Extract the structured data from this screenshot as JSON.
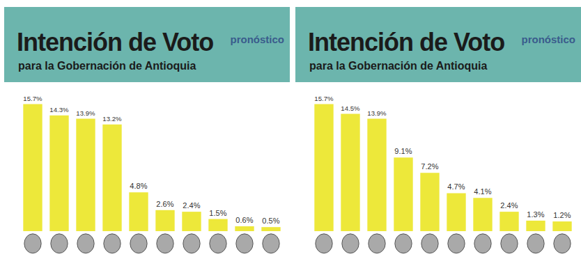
{
  "chart_data": [
    {
      "type": "bar",
      "title": "Intención de Voto",
      "subtitle": "para la Gobernación de Antioquia",
      "annotations": [
        "pronóstico"
      ],
      "categories": [
        null,
        null,
        null,
        null,
        null,
        null,
        null,
        null,
        null,
        null
      ],
      "values": [
        15.7,
        14.3,
        13.9,
        13.2,
        4.8,
        2.6,
        2.4,
        1.5,
        0.6,
        0.5
      ],
      "value_labels": [
        "15.7%",
        "14.3%",
        "13.9%",
        "13.2%",
        "4.8%",
        "2.6%",
        "2.4%",
        "1.5%",
        "0.6%",
        "0.5%"
      ],
      "color": "#ede83a",
      "data_labels": true,
      "tick_labels": false,
      "grid": false
    },
    {
      "type": "bar",
      "title": "Intención de Voto",
      "subtitle": "para la Gobernación de Antioquia",
      "annotations": [
        "pronóstico"
      ],
      "categories": [
        null,
        null,
        null,
        null,
        null,
        null,
        null,
        null,
        null,
        null
      ],
      "values": [
        15.7,
        14.5,
        13.9,
        9.1,
        7.2,
        4.7,
        4.1,
        2.4,
        1.3,
        1.2
      ],
      "value_labels": [
        "15.7%",
        "14.5%",
        "13.9%",
        "9.1%",
        "7.2%",
        "4.7%",
        "4.1%",
        "2.4%",
        "1.3%",
        "1.2%"
      ],
      "color": "#ede83a",
      "data_labels": true,
      "tick_labels": false,
      "grid": false
    }
  ]
}
